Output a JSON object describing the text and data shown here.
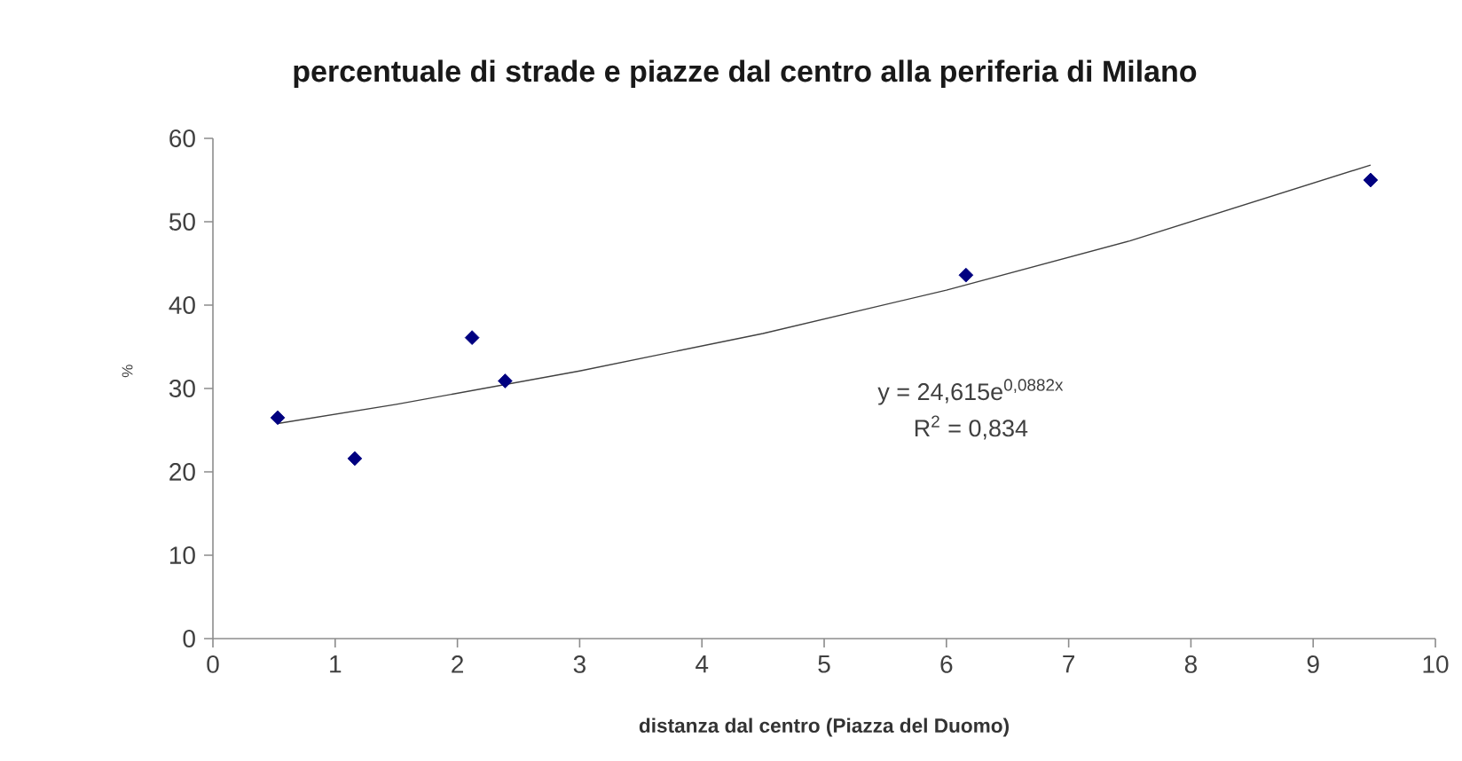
{
  "chart_data": {
    "type": "scatter",
    "title": "percentuale di strade e piazze dal centro alla periferia di Milano",
    "xlabel": "distanza dal centro (Piazza del Duomo)",
    "ylabel": "%",
    "annotations": [
      "y = 24,615e$^{0,0882x}$",
      "R$^{2}$ = 0,834"
    ],
    "series": [
      {
        "x": [
          0.53,
          1.16,
          2.12,
          2.39,
          6.16,
          9.47
        ],
        "values": [
          26.5,
          21.6,
          36.1,
          30.9,
          43.6,
          55.0
        ],
        "color": "#000080",
        "marker": "diamond"
      },
      {
        "type": "line",
        "x": [
          0.53,
          1.5,
          3,
          4.5,
          6,
          7.5,
          9.47
        ],
        "values": [
          25.8,
          28.1,
          32.1,
          36.6,
          41.8,
          47.7,
          56.8
        ],
        "color": "#404040",
        "marker": "none",
        "line_style": "solid"
      }
    ],
    "xlim": [
      0,
      10
    ],
    "xticks": [
      0,
      1,
      2,
      3,
      4,
      5,
      6,
      7,
      8,
      9,
      10
    ],
    "ylim": [
      0,
      60
    ],
    "yticks": [
      0,
      10,
      20,
      30,
      40,
      50,
      60
    ]
  }
}
